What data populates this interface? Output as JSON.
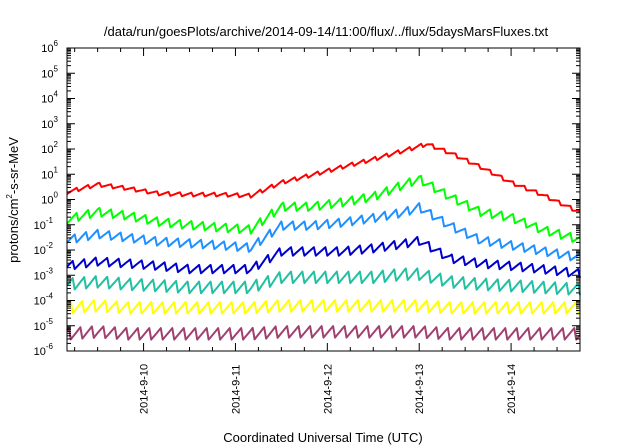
{
  "chart_data": {
    "type": "line",
    "title": "/data/run/goesPlots/archive/2014-09-14/11:00/flux/../flux/5daysMarsFluxes.txt",
    "xlabel": "Coordinated Universal Time (UTC)",
    "ylabel": "protons/cm²-s-sr-MeV",
    "ylabel_parts": {
      "main": "protons/cm",
      "sup": "2",
      "rest": "-s-sr-MeV"
    },
    "y_scale": "log",
    "ylim": [
      1e-06,
      1000000.0
    ],
    "y_ticks": [
      {
        "base": "10",
        "exp": "-6",
        "value": 1e-06
      },
      {
        "base": "10",
        "exp": "-5",
        "value": 1e-05
      },
      {
        "base": "10",
        "exp": "-4",
        "value": 0.0001
      },
      {
        "base": "10",
        "exp": "-3",
        "value": 0.001
      },
      {
        "base": "10",
        "exp": "-2",
        "value": 0.01
      },
      {
        "base": "10",
        "exp": "-1",
        "value": 0.1
      },
      {
        "base": "10",
        "exp": "0",
        "value": 1
      },
      {
        "base": "10",
        "exp": "1",
        "value": 10
      },
      {
        "base": "10",
        "exp": "2",
        "value": 100
      },
      {
        "base": "10",
        "exp": "3",
        "value": 1000
      },
      {
        "base": "10",
        "exp": "4",
        "value": 10000
      },
      {
        "base": "10",
        "exp": "5",
        "value": 100000
      },
      {
        "base": "10",
        "exp": "6",
        "value": 1000000
      }
    ],
    "xlim": [
      "2014-09-09T04:00",
      "2014-09-14T18:00"
    ],
    "x_ticks": [
      "2014-9-10",
      "2014-9-11",
      "2014-9-12",
      "2014-9-13",
      "2014-9-14"
    ],
    "grid": false,
    "series": [
      {
        "color": "#ff0000",
        "points": [
          [
            "2014-09-09T04:00",
            2.5
          ],
          [
            "2014-09-09T12:00",
            5
          ],
          [
            "2014-09-09T20:00",
            3.5
          ],
          [
            "2014-09-10T04:00",
            2.2
          ],
          [
            "2014-09-10T12:00",
            2.0
          ],
          [
            "2014-09-10T20:00",
            2.0
          ],
          [
            "2014-09-11T04:00",
            1.8
          ],
          [
            "2014-09-11T12:00",
            6
          ],
          [
            "2014-09-11T20:00",
            12
          ],
          [
            "2014-09-12T04:00",
            25
          ],
          [
            "2014-09-12T12:00",
            50
          ],
          [
            "2014-09-12T20:00",
            110
          ],
          [
            "2014-09-13T02:00",
            200
          ],
          [
            "2014-09-13T08:00",
            90
          ],
          [
            "2014-09-13T16:00",
            25
          ],
          [
            "2014-09-14T00:00",
            6
          ],
          [
            "2014-09-14T08:00",
            2
          ],
          [
            "2014-09-14T18:00",
            0.4
          ]
        ]
      },
      {
        "color": "#00ff00",
        "points": [
          [
            "2014-09-09T04:00",
            0.25
          ],
          [
            "2014-09-09T12:00",
            0.5
          ],
          [
            "2014-09-09T20:00",
            0.35
          ],
          [
            "2014-09-10T04:00",
            0.2
          ],
          [
            "2014-09-10T12:00",
            0.15
          ],
          [
            "2014-09-10T20:00",
            0.12
          ],
          [
            "2014-09-11T04:00",
            0.1
          ],
          [
            "2014-09-11T12:00",
            0.8
          ],
          [
            "2014-09-11T20:00",
            0.8
          ],
          [
            "2014-09-12T04:00",
            1.2
          ],
          [
            "2014-09-12T12:00",
            2.0
          ],
          [
            "2014-09-12T20:00",
            6
          ],
          [
            "2014-09-13T00:00",
            10
          ],
          [
            "2014-09-13T08:00",
            2
          ],
          [
            "2014-09-13T16:00",
            0.5
          ],
          [
            "2014-09-14T00:00",
            0.3
          ],
          [
            "2014-09-14T08:00",
            0.1
          ],
          [
            "2014-09-14T18:00",
            0.04
          ]
        ]
      },
      {
        "color": "#1e90ff",
        "points": [
          [
            "2014-09-09T04:00",
            0.04
          ],
          [
            "2014-09-09T12:00",
            0.07
          ],
          [
            "2014-09-09T20:00",
            0.05
          ],
          [
            "2014-09-10T04:00",
            0.035
          ],
          [
            "2014-09-10T12:00",
            0.03
          ],
          [
            "2014-09-10T20:00",
            0.025
          ],
          [
            "2014-09-11T04:00",
            0.02
          ],
          [
            "2014-09-11T12:00",
            0.15
          ],
          [
            "2014-09-11T20:00",
            0.15
          ],
          [
            "2014-09-12T04:00",
            0.2
          ],
          [
            "2014-09-12T12:00",
            0.3
          ],
          [
            "2014-09-12T20:00",
            0.5
          ],
          [
            "2014-09-13T00:00",
            0.8
          ],
          [
            "2014-09-13T08:00",
            0.15
          ],
          [
            "2014-09-13T16:00",
            0.04
          ],
          [
            "2014-09-14T00:00",
            0.025
          ],
          [
            "2014-09-14T08:00",
            0.015
          ],
          [
            "2014-09-14T18:00",
            0.008
          ]
        ]
      },
      {
        "color": "#0000cd",
        "points": [
          [
            "2014-09-09T04:00",
            0.004
          ],
          [
            "2014-09-09T12:00",
            0.006
          ],
          [
            "2014-09-09T20:00",
            0.005
          ],
          [
            "2014-09-10T04:00",
            0.004
          ],
          [
            "2014-09-10T12:00",
            0.003
          ],
          [
            "2014-09-10T20:00",
            0.003
          ],
          [
            "2014-09-11T04:00",
            0.003
          ],
          [
            "2014-09-11T12:00",
            0.015
          ],
          [
            "2014-09-11T20:00",
            0.015
          ],
          [
            "2014-09-12T04:00",
            0.015
          ],
          [
            "2014-09-12T12:00",
            0.02
          ],
          [
            "2014-09-12T20:00",
            0.03
          ],
          [
            "2014-09-13T00:00",
            0.04
          ],
          [
            "2014-09-13T08:00",
            0.008
          ],
          [
            "2014-09-13T16:00",
            0.005
          ],
          [
            "2014-09-14T00:00",
            0.004
          ],
          [
            "2014-09-14T08:00",
            0.003
          ],
          [
            "2014-09-14T18:00",
            0.002
          ]
        ]
      },
      {
        "color": "#20c0a0",
        "points": [
          [
            "2014-09-09T04:00",
            0.0008
          ],
          [
            "2014-09-09T12:00",
            0.001
          ],
          [
            "2014-09-09T20:00",
            0.0008
          ],
          [
            "2014-09-10T04:00",
            0.0007
          ],
          [
            "2014-09-10T12:00",
            0.0006
          ],
          [
            "2014-09-10T20:00",
            0.0006
          ],
          [
            "2014-09-11T04:00",
            0.0006
          ],
          [
            "2014-09-11T12:00",
            0.0015
          ],
          [
            "2014-09-11T20:00",
            0.0015
          ],
          [
            "2014-09-12T04:00",
            0.0015
          ],
          [
            "2014-09-12T12:00",
            0.0015
          ],
          [
            "2014-09-12T20:00",
            0.002
          ],
          [
            "2014-09-13T00:00",
            0.002
          ],
          [
            "2014-09-13T08:00",
            0.001
          ],
          [
            "2014-09-13T16:00",
            0.0008
          ],
          [
            "2014-09-14T00:00",
            0.0007
          ],
          [
            "2014-09-14T08:00",
            0.0006
          ],
          [
            "2014-09-14T18:00",
            0.0005
          ]
        ]
      },
      {
        "color": "#ffff00",
        "points": [
          [
            "2014-09-09T04:00",
            0.0001
          ],
          [
            "2014-09-09T12:00",
            0.00012
          ],
          [
            "2014-09-09T20:00",
            0.0001
          ],
          [
            "2014-09-10T04:00",
            0.0001
          ],
          [
            "2014-09-10T12:00",
            0.0001
          ],
          [
            "2014-09-10T20:00",
            0.0001
          ],
          [
            "2014-09-11T04:00",
            0.0001
          ],
          [
            "2014-09-11T12:00",
            0.00012
          ],
          [
            "2014-09-11T20:00",
            0.00012
          ],
          [
            "2014-09-12T04:00",
            0.00012
          ],
          [
            "2014-09-12T12:00",
            0.00012
          ],
          [
            "2014-09-12T20:00",
            0.00012
          ],
          [
            "2014-09-13T00:00",
            0.00012
          ],
          [
            "2014-09-13T08:00",
            0.0001
          ],
          [
            "2014-09-13T16:00",
            0.0001
          ],
          [
            "2014-09-14T00:00",
            0.0001
          ],
          [
            "2014-09-14T08:00",
            0.0001
          ],
          [
            "2014-09-14T18:00",
            0.0001
          ]
        ]
      },
      {
        "color": "#a04070",
        "points": [
          [
            "2014-09-09T04:00",
            1e-05
          ],
          [
            "2014-09-09T12:00",
            1.2e-05
          ],
          [
            "2014-09-09T20:00",
            1e-05
          ],
          [
            "2014-09-10T04:00",
            1e-05
          ],
          [
            "2014-09-10T12:00",
            1e-05
          ],
          [
            "2014-09-10T20:00",
            1e-05
          ],
          [
            "2014-09-11T04:00",
            1e-05
          ],
          [
            "2014-09-11T12:00",
            1.2e-05
          ],
          [
            "2014-09-11T20:00",
            1.2e-05
          ],
          [
            "2014-09-12T04:00",
            1.2e-05
          ],
          [
            "2014-09-12T12:00",
            1.2e-05
          ],
          [
            "2014-09-12T20:00",
            1.2e-05
          ],
          [
            "2014-09-13T00:00",
            1.2e-05
          ],
          [
            "2014-09-13T08:00",
            1e-05
          ],
          [
            "2014-09-13T16:00",
            1e-05
          ],
          [
            "2014-09-14T00:00",
            1e-05
          ],
          [
            "2014-09-14T08:00",
            1e-05
          ],
          [
            "2014-09-14T18:00",
            1e-05
          ]
        ]
      }
    ]
  }
}
